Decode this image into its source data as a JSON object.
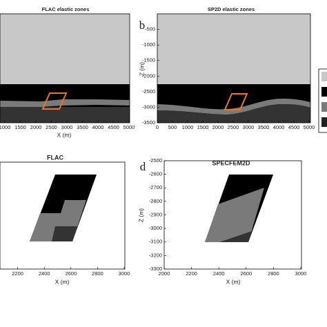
{
  "chart_data": [
    {
      "type": "zones",
      "title": "FLAC elastic zones",
      "xlabel": "X (m)",
      "xlim": [
        0,
        5000
      ],
      "xticks": [
        1000,
        1500,
        2000,
        2500,
        3000,
        3500,
        4000,
        4500,
        5000
      ]
    },
    {
      "type": "zones",
      "panel_label": "b",
      "title": "SP2D elastic zones",
      "ylabel": "Z (m)",
      "xlim": [
        0,
        5000
      ],
      "xticks": [
        0,
        500,
        1000,
        1500,
        2000,
        2500,
        3000,
        3500,
        4000,
        4500,
        5000
      ],
      "ylim": [
        -3500,
        0
      ],
      "yticks": [
        -3500,
        -3000,
        -2500,
        -2000,
        -1500,
        -1000,
        -500
      ]
    },
    {
      "type": "zones",
      "title": "FLAC",
      "xlabel": "X (m)",
      "xlim": [
        2000,
        3000
      ],
      "xticks": [
        2200,
        2400,
        2600,
        2800,
        3000
      ]
    },
    {
      "type": "zones",
      "panel_label": "d",
      "title": "SPECFEM2D",
      "xlabel": "X (m)",
      "ylabel": "Z (m)",
      "xlim": [
        2000,
        3000
      ],
      "xticks": [
        2000,
        2200,
        2400,
        2600,
        2800,
        3000
      ],
      "ylim": [
        -3300,
        -2500
      ],
      "yticks": [
        -3300,
        -3200,
        -3100,
        -3000,
        -2900,
        -2800,
        -2700,
        -2600,
        -2500
      ]
    }
  ]
}
